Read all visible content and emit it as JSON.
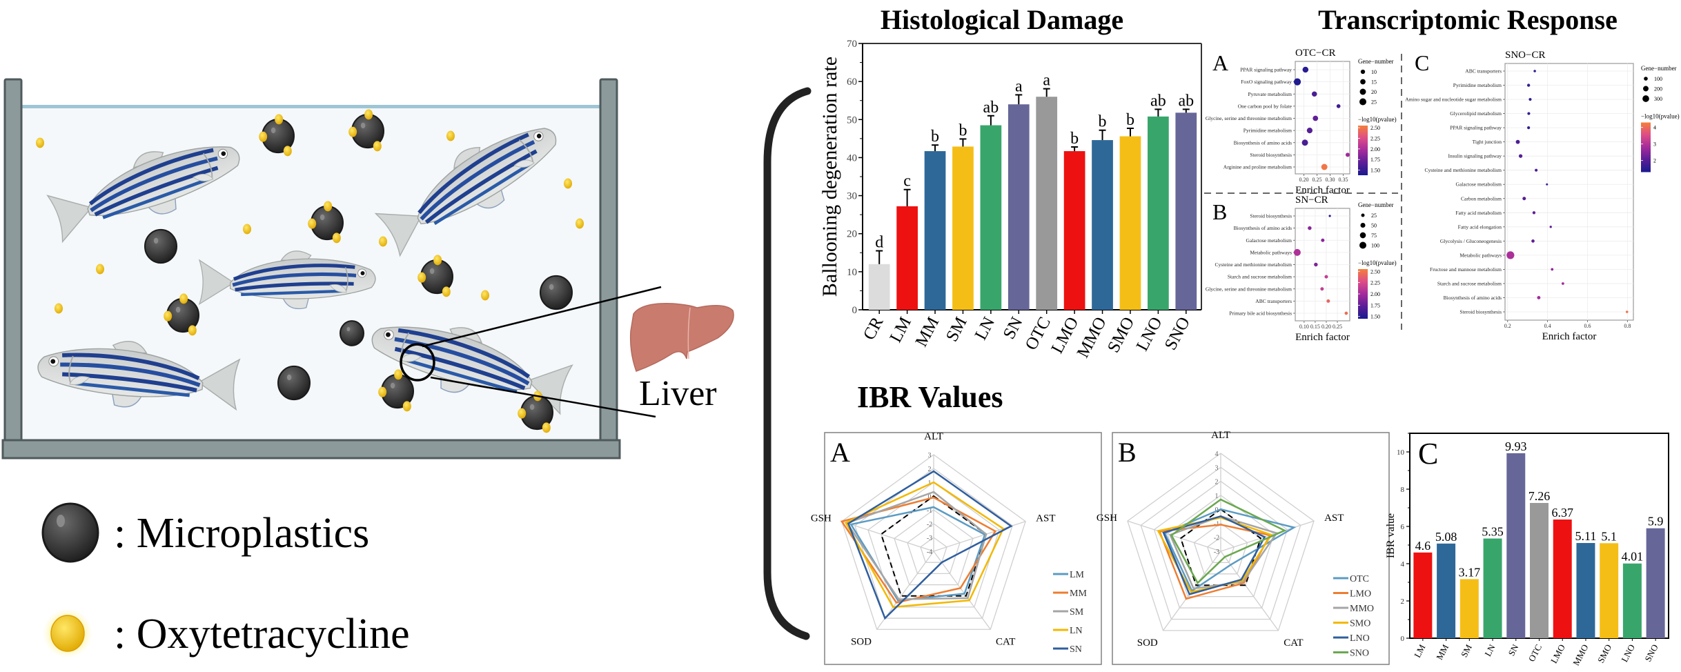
{
  "titles": {
    "histological": "Histological Damage",
    "transcriptomic": "Transcriptomic Response",
    "ibr": "IBR Values"
  },
  "scene": {
    "liver_label": "Liver",
    "water_color": "#9ec5d6",
    "tank_color": "#8c9a9c",
    "microplastic_color": "#3a3a3a",
    "oxytetracycline_color": "#f2c200",
    "liver_color": "#c97b6e"
  },
  "legend": {
    "microplastics": ": Microplastics",
    "oxytetracycline": ": Oxytetracycline"
  },
  "panel_letters": {
    "a": "A",
    "b": "B",
    "c": "C"
  },
  "chart_data": [
    {
      "type": "bar",
      "title": "Histological Damage",
      "ylabel": "Ballooning degeneration rate",
      "ylim": [
        0,
        70
      ],
      "yticks": [
        0,
        10,
        20,
        30,
        40,
        50,
        60,
        70
      ],
      "categories": [
        "CR",
        "LM",
        "MM",
        "SM",
        "LN",
        "SN",
        "OTC",
        "LMO",
        "MMO",
        "SMO",
        "LNO",
        "SNO"
      ],
      "values": [
        12,
        27.2,
        41.7,
        42.9,
        48.5,
        54,
        56,
        41.7,
        44.6,
        45.6,
        50.8,
        51.8
      ],
      "errors": [
        3.5,
        4.4,
        1.6,
        2,
        2.5,
        2.5,
        2.1,
        1.1,
        2.6,
        2.1,
        1.9,
        0.9
      ],
      "letters": [
        "d",
        "c",
        "b",
        "b",
        "ab",
        "a",
        "a",
        "b",
        "b",
        "b",
        "ab",
        "ab"
      ],
      "colors": [
        "#dcdcdc",
        "#ee1111",
        "#2e6899",
        "#f5be17",
        "#38a66b",
        "#666699",
        "#999999",
        "#ee1111",
        "#2e6899",
        "#f5be17",
        "#38a66b",
        "#666699"
      ]
    },
    {
      "type": "scatter",
      "panel": "A",
      "title": "OTC−CR",
      "xlabel": "Enrich factor",
      "xlim": [
        0.167,
        0.375
      ],
      "xticks": [
        "0.20",
        "0.25",
        "0.30",
        "0.35"
      ],
      "pathways": [
        "PPAR signaling pathway",
        "FoxO signaling pathway",
        "Pyruvate metabolism",
        "One carbon pool by folate",
        "Glycine, serine and threonine metabolism",
        "Pyrimidine metabolism",
        "Biosynthesis of amino acids",
        "Steroid biosynthesis",
        "Arginine and proline metabolism"
      ],
      "enrich_factor": [
        0.206,
        0.175,
        0.24,
        0.332,
        0.244,
        0.222,
        0.204,
        0.367,
        0.278
      ],
      "gene_number": [
        18,
        26,
        14,
        8,
        15,
        17,
        20,
        9,
        20
      ],
      "neg_log10_p": [
        1.45,
        1.4,
        1.6,
        1.55,
        1.7,
        1.65,
        1.6,
        1.95,
        2.5
      ],
      "size_legend_title": "Gene−number",
      "size_legend": [
        10,
        15,
        20,
        25
      ],
      "color_legend_title": "−log10(pvalue)",
      "color_range": [
        1.38,
        2.55
      ],
      "color_legend": [
        "2.50",
        "2.25",
        "2.00",
        "1.75",
        "1.50"
      ]
    },
    {
      "type": "scatter",
      "panel": "B",
      "title": "SN−CR",
      "xlabel": "Enrich factor",
      "xlim": [
        0.06,
        0.306
      ],
      "xticks": [
        "0.10",
        "0.15",
        "0.20",
        "0.25"
      ],
      "pathways": [
        "Steroid biosynthesis",
        "Biosynthesis of amino acids",
        "Galactose metabolism",
        "Metabolic pathways",
        "Cysteine and methionine metabolism",
        "Starch and sucrose metabolism",
        "Glycine, serine and threonine metabolism",
        "ABC transporters",
        "Primary bile acid biosynthesis"
      ],
      "enrich_factor": [
        0.216,
        0.125,
        0.184,
        0.069,
        0.153,
        0.2,
        0.181,
        0.209,
        0.29
      ],
      "gene_number": [
        10,
        30,
        25,
        100,
        30,
        25,
        25,
        25,
        22
      ],
      "neg_log10_p": [
        1.5,
        1.9,
        1.9,
        2.05,
        1.85,
        2.15,
        2.15,
        2.4,
        2.45
      ],
      "size_legend_title": "Gene−number",
      "size_legend": [
        25,
        50,
        75,
        100
      ],
      "color_legend_title": "−log10(pvalue)",
      "color_range": [
        1.45,
        2.55
      ],
      "color_legend": [
        "2.50",
        "2.25",
        "2.00",
        "1.75",
        "1.50"
      ]
    },
    {
      "type": "scatter",
      "panel": "C",
      "title": "SNO−CR",
      "xlabel": "Enrich factor",
      "xlim": [
        0.187,
        0.83
      ],
      "xticks": [
        "0.2",
        "0.4",
        "0.6",
        "0.8"
      ],
      "pathways": [
        "ABC transporters",
        "Pyrimidine metabolism",
        "Amino sugar and nucleotide sugar metabolism",
        "Glycerolipid metabolism",
        "PPAR signaling pathway",
        "Tight junction",
        "Insulin signaling pathway",
        "Cysteine and methionine metabolism",
        "Galactose metabolism",
        "Carbon metabolism",
        "Fatty acid metabolism",
        "Fatty acid elongation",
        "Glycolysis / Gluconeogenesis",
        "Metabolic pathways",
        "Fructose and mannose metabolism",
        "Starch and sucrose metabolism",
        "Biosynthesis of amino acids",
        "Steroid biosynthesis"
      ],
      "enrich_factor": [
        0.336,
        0.305,
        0.313,
        0.306,
        0.305,
        0.251,
        0.265,
        0.343,
        0.397,
        0.283,
        0.332,
        0.416,
        0.327,
        0.214,
        0.423,
        0.477,
        0.356,
        0.798
      ],
      "gene_number": [
        40,
        60,
        55,
        55,
        55,
        110,
        90,
        55,
        30,
        80,
        60,
        35,
        70,
        400,
        45,
        45,
        75,
        40
      ],
      "neg_log10_p": [
        1.5,
        1.6,
        1.6,
        1.6,
        1.6,
        1.9,
        2.0,
        1.9,
        1.8,
        2.0,
        2.1,
        2.1,
        2.1,
        2.9,
        2.6,
        2.8,
        2.8,
        4.1
      ],
      "size_legend_title": "Gene−number",
      "size_legend": [
        100,
        200,
        300
      ],
      "color_legend_title": "−log10(pvalue)",
      "color_range": [
        1.3,
        4.3
      ],
      "color_legend": [
        "4",
        "3",
        "2"
      ]
    },
    {
      "type": "radar",
      "panel": "A",
      "axes": [
        "ALT",
        "AST",
        "CAT",
        "SOD",
        "GSH"
      ],
      "rlim": [
        -4,
        3
      ],
      "rticks": [
        3,
        2,
        1,
        0,
        -1,
        -2,
        -3,
        -4
      ],
      "series": [
        {
          "name": "LM",
          "color": "#5b9bc4",
          "values": [
            -0.8,
            -0.1,
            -0.2,
            0.4,
            2.3
          ]
        },
        {
          "name": "MM",
          "color": "#ed7d31",
          "values": [
            -0.1,
            0.7,
            -0.7,
            0.6,
            3.0
          ]
        },
        {
          "name": "SM",
          "color": "#a5a5a5",
          "values": [
            0.3,
            0.0,
            0.2,
            0.3,
            2.6
          ]
        },
        {
          "name": "LN",
          "color": "#f2b800",
          "values": [
            1.0,
            1.3,
            0.4,
            1.0,
            2.7
          ]
        },
        {
          "name": "SN",
          "color": "#2f5e9e",
          "values": [
            1.8,
            1.9,
            -3.0,
            2.0,
            2.5
          ]
        }
      ],
      "baseline": {
        "color": "#000000",
        "style": "dashed",
        "values": [
          0,
          0,
          0,
          0,
          0
        ]
      }
    },
    {
      "type": "radar",
      "panel": "B",
      "axes": [
        "ALT",
        "AST",
        "CAT",
        "SOD",
        "GSH"
      ],
      "rlim": [
        -3,
        4
      ],
      "rticks": [
        4,
        3,
        2,
        1,
        0,
        -1,
        -2,
        -3
      ],
      "series": [
        {
          "name": "OTC",
          "color": "#5b9bc4",
          "values": [
            0.0,
            2.5,
            -1.8,
            0.5,
            1.2
          ]
        },
        {
          "name": "LMO",
          "color": "#ed7d31",
          "values": [
            -1.1,
            0.7,
            -0.2,
            1.2,
            1.6
          ]
        },
        {
          "name": "MMO",
          "color": "#a5a5a5",
          "values": [
            -0.5,
            1.2,
            -0.3,
            0.3,
            0.8
          ]
        },
        {
          "name": "SMO",
          "color": "#f2b800",
          "values": [
            -0.6,
            0.8,
            -0.4,
            0.6,
            1.7
          ]
        },
        {
          "name": "LNO",
          "color": "#2f5e9e",
          "values": [
            -0.5,
            0.3,
            -0.5,
            0.8,
            1.3
          ]
        },
        {
          "name": "SNO",
          "color": "#6aa84f",
          "values": [
            0.7,
            1.8,
            -2.5,
            -0.2,
            0.7
          ]
        }
      ],
      "baseline": {
        "color": "#000000",
        "style": "dashed",
        "values": [
          0,
          0,
          0,
          0,
          0
        ]
      }
    },
    {
      "type": "bar",
      "panel": "C",
      "ylabel": "IBR value",
      "ylim": [
        0,
        11
      ],
      "yticks": [
        0,
        2,
        4,
        6,
        8,
        10
      ],
      "categories": [
        "LM",
        "MM",
        "SM",
        "LN",
        "SN",
        "OTC",
        "LMO",
        "MMO",
        "SMO",
        "LNO",
        "SNO"
      ],
      "values": [
        4.6,
        5.08,
        3.17,
        5.35,
        9.93,
        7.26,
        6.37,
        5.11,
        5.1,
        4.01,
        5.9
      ],
      "labels": [
        "4.6",
        "5.08",
        "3.17",
        "5.35",
        "9.93",
        "7.26",
        "6.37",
        "5.11",
        "5.1",
        "4.01",
        "5.9"
      ],
      "colors": [
        "#ee1111",
        "#2e6899",
        "#f5be17",
        "#38a66b",
        "#666699",
        "#999999",
        "#ee1111",
        "#2e6899",
        "#f5be17",
        "#38a66b",
        "#666699"
      ]
    }
  ]
}
